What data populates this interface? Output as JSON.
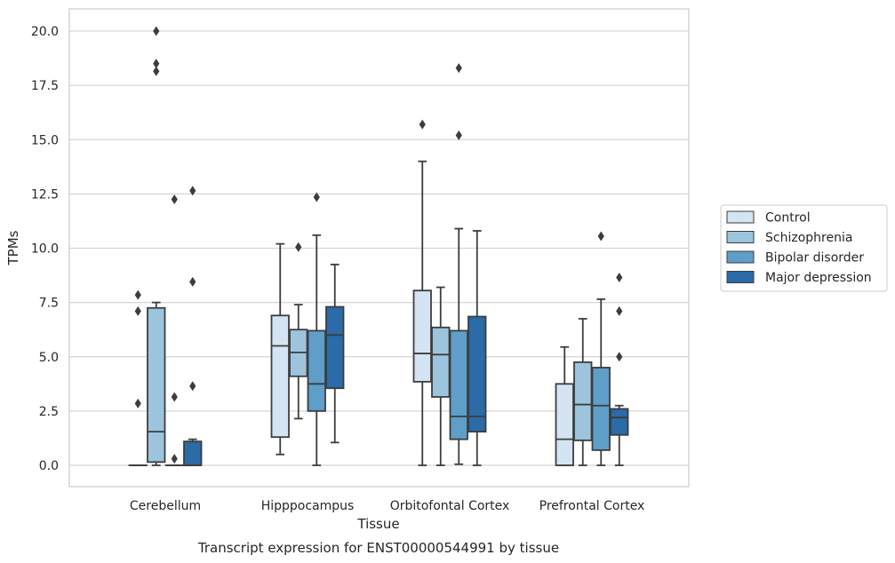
{
  "chart_data": {
    "type": "box",
    "title": "",
    "caption": "Transcript expression for ENST00000544991 by tissue",
    "xlabel": "Tissue",
    "ylabel": "TPMs",
    "ylim": [
      -1.0,
      21.0
    ],
    "yticks": [
      "0.0",
      "2.5",
      "5.0",
      "7.5",
      "10.0",
      "12.5",
      "15.0",
      "17.5",
      "20.0"
    ],
    "ytick_values": [
      0,
      2.5,
      5,
      7.5,
      10,
      12.5,
      15,
      17.5,
      20
    ],
    "grid": "horizontal",
    "legend_position": "right",
    "categories": [
      "Cerebellum",
      "Hipppocampus",
      "Orbitofontal Cortex",
      "Prefrontal Cortex"
    ],
    "series": [
      {
        "name": "Control",
        "color": "#d4e4f2",
        "boxes": [
          {
            "q1": 0.0,
            "median": 0.0,
            "q3": 0.0,
            "whisker_low": 0.0,
            "whisker_high": 0.0,
            "outliers": [
              2.85,
              7.1,
              7.85
            ]
          },
          {
            "q1": 1.3,
            "median": 5.5,
            "q3": 6.9,
            "whisker_low": 0.5,
            "whisker_high": 10.2,
            "outliers": []
          },
          {
            "q1": 3.85,
            "median": 5.15,
            "q3": 8.05,
            "whisker_low": 0.0,
            "whisker_high": 14.0,
            "outliers": [
              15.7
            ]
          },
          {
            "q1": 0.0,
            "median": 1.2,
            "q3": 3.75,
            "whisker_low": 0.0,
            "whisker_high": 5.45,
            "outliers": []
          }
        ]
      },
      {
        "name": "Schizophrenia",
        "color": "#9dc4dd",
        "boxes": [
          {
            "q1": 0.15,
            "median": 1.55,
            "q3": 7.25,
            "whisker_low": 0.0,
            "whisker_high": 7.5,
            "outliers": [
              18.15,
              18.5,
              20.0
            ]
          },
          {
            "q1": 4.1,
            "median": 5.2,
            "q3": 6.25,
            "whisker_low": 2.15,
            "whisker_high": 7.4,
            "outliers": [
              10.05
            ]
          },
          {
            "q1": 3.15,
            "median": 5.1,
            "q3": 6.35,
            "whisker_low": 0.0,
            "whisker_high": 8.2,
            "outliers": []
          },
          {
            "q1": 1.15,
            "median": 2.8,
            "q3": 4.75,
            "whisker_low": 0.0,
            "whisker_high": 6.75,
            "outliers": []
          }
        ]
      },
      {
        "name": "Bipolar disorder",
        "color": "#5e9ec9",
        "boxes": [
          {
            "q1": 0.0,
            "median": 0.0,
            "q3": 0.0,
            "whisker_low": 0.0,
            "whisker_high": 0.0,
            "outliers": [
              0.3,
              3.15,
              12.25
            ]
          },
          {
            "q1": 2.5,
            "median": 3.75,
            "q3": 6.2,
            "whisker_low": 0.0,
            "whisker_high": 10.6,
            "outliers": [
              12.35
            ]
          },
          {
            "q1": 1.2,
            "median": 2.25,
            "q3": 6.2,
            "whisker_low": 0.05,
            "whisker_high": 10.9,
            "outliers": [
              15.2,
              18.3
            ]
          },
          {
            "q1": 0.7,
            "median": 2.75,
            "q3": 4.5,
            "whisker_low": 0.0,
            "whisker_high": 7.65,
            "outliers": [
              10.55
            ]
          }
        ]
      },
      {
        "name": "Major depression",
        "color": "#2a6ba8",
        "boxes": [
          {
            "q1": 0.0,
            "median": 0.0,
            "q3": 1.1,
            "whisker_low": 0.0,
            "whisker_high": 1.2,
            "outliers": [
              3.65,
              8.45,
              12.65
            ]
          },
          {
            "q1": 3.55,
            "median": 6.0,
            "q3": 7.3,
            "whisker_low": 1.05,
            "whisker_high": 9.25,
            "outliers": []
          },
          {
            "q1": 1.55,
            "median": 2.25,
            "q3": 6.85,
            "whisker_low": 0.0,
            "whisker_high": 10.8,
            "outliers": []
          },
          {
            "q1": 1.4,
            "median": 2.2,
            "q3": 2.6,
            "whisker_low": 0.0,
            "whisker_high": 2.75,
            "outliers": [
              5.0,
              7.1,
              8.65
            ]
          }
        ]
      }
    ]
  }
}
